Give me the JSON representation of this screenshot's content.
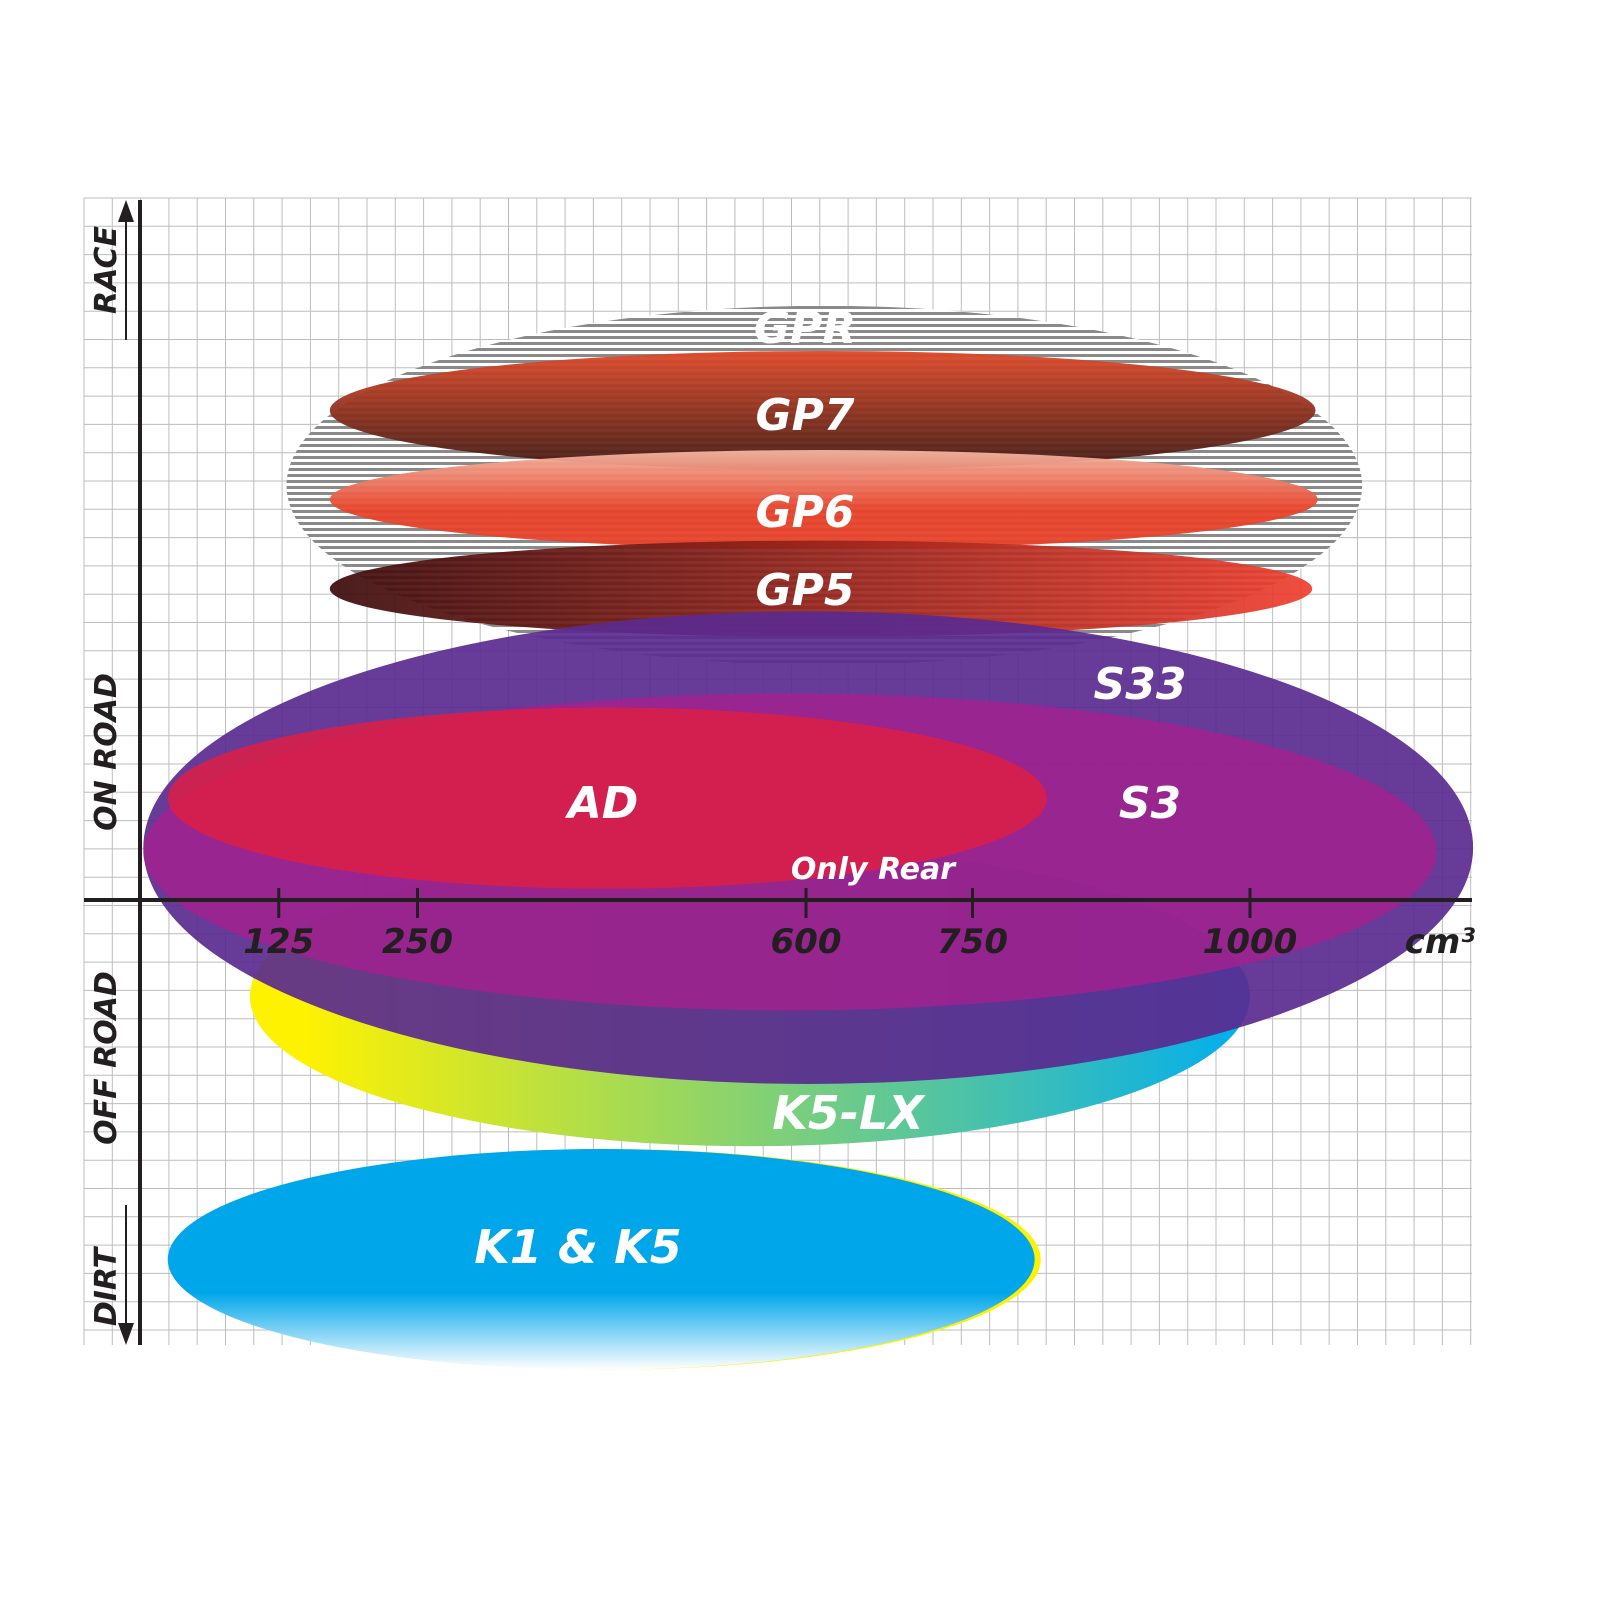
{
  "chart_data": {
    "type": "range-ellipses",
    "xlabel": "cm³",
    "x_ticks": [
      125,
      250,
      600,
      750,
      1000
    ],
    "x_tick_labels": [
      "125",
      "250",
      "600",
      "750",
      "1000"
    ],
    "x_unit_label": "cm³",
    "xlim": [
      0,
      1200
    ],
    "y_categories": [
      "RACE",
      "ON ROAD",
      "OFF ROAD",
      "DIRT"
    ],
    "grid": true,
    "series": [
      {
        "name": "GPR",
        "x_range": [
          132,
          1101
        ],
        "y_range": [
          8.3,
          21.0
        ],
        "colors": [
          "#9a9a9a",
          "#ffffff"
        ],
        "fill": "striped"
      },
      {
        "name": "GP7",
        "x_range": [
          171,
          1059
        ],
        "y_range": [
          15.2,
          19.4
        ],
        "colors": [
          "#e04a2a",
          "#3f1a14"
        ]
      },
      {
        "name": "GP6",
        "x_range": [
          171,
          1061
        ],
        "y_range": [
          12.4,
          15.9
        ],
        "colors": [
          "#f2b7a2",
          "#e8432a"
        ]
      },
      {
        "name": "GP5",
        "x_range": [
          171,
          1056
        ],
        "y_range": [
          9.3,
          12.7
        ],
        "colors": [
          "#3b0a0a",
          "#ef3e2e"
        ]
      },
      {
        "name": "S33",
        "x_range": [
          3,
          1201
        ],
        "y_range": [
          -6.5,
          10.2
        ],
        "colors": [
          "#5a2a8f"
        ]
      },
      {
        "name": "S3",
        "x_range": [
          3,
          1168
        ],
        "y_range": [
          -3.9,
          7.3
        ],
        "colors": [
          "#a5208e"
        ]
      },
      {
        "name": "AD",
        "x_range": [
          25,
          817
        ],
        "y_range": [
          0.4,
          6.8
        ],
        "colors": [
          "#dd1f45"
        ]
      },
      {
        "name": "K5-LX",
        "x_range": [
          99,
          1000
        ],
        "y_range": [
          -8.7,
          1.9
        ],
        "colors": [
          "#fff200",
          "#00aeef"
        ],
        "annotation": "Only Rear"
      },
      {
        "name": "K1 & K5",
        "x_range": [
          25,
          806
        ],
        "y_range": [
          -16.6,
          -8.8
        ],
        "colors": [
          "#00a6ea",
          "#ffffff",
          "#fff200"
        ]
      }
    ]
  }
}
